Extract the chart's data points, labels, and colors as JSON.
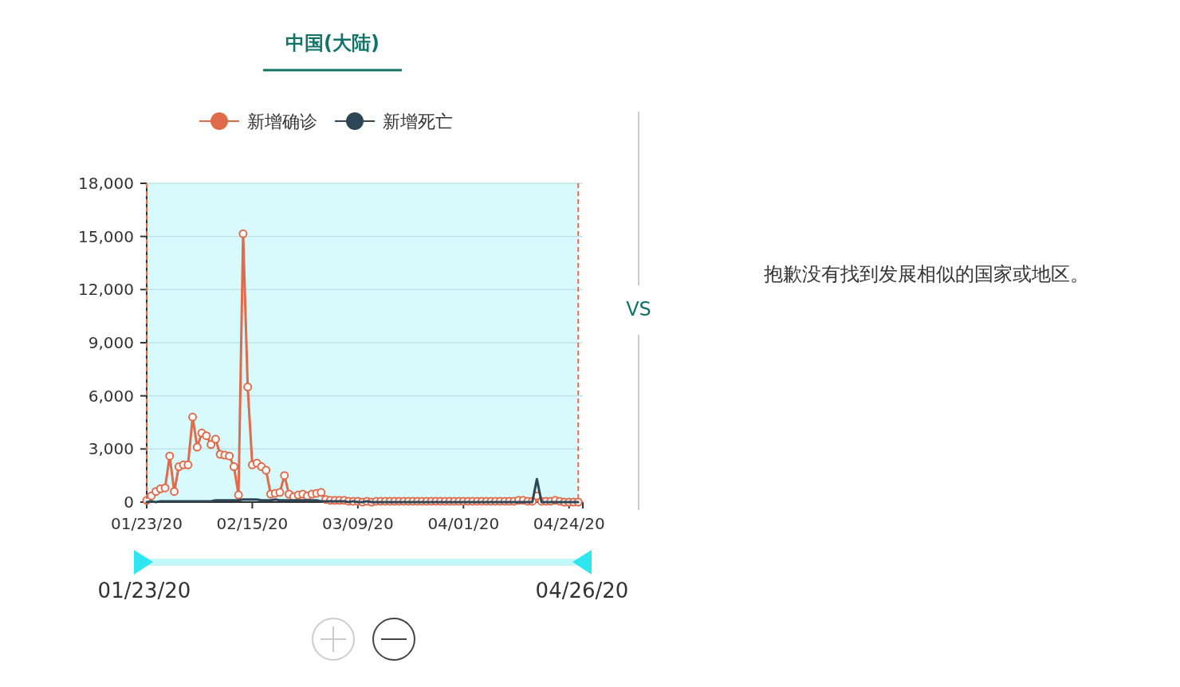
{
  "chart_data": {
    "type": "line",
    "title": "中国(大陆)",
    "subtitle": "VS",
    "x": [
      "2020-01-23",
      "2020-01-24",
      "2020-01-25",
      "2020-01-26",
      "2020-01-27",
      "2020-01-28",
      "2020-01-29",
      "2020-01-30",
      "2020-01-31",
      "2020-02-01",
      "2020-02-02",
      "2020-02-03",
      "2020-02-04",
      "2020-02-05",
      "2020-02-06",
      "2020-02-07",
      "2020-02-08",
      "2020-02-09",
      "2020-02-10",
      "2020-02-11",
      "2020-02-12",
      "2020-02-13",
      "2020-02-14",
      "2020-02-15",
      "2020-02-16",
      "2020-02-17",
      "2020-02-18",
      "2020-02-19",
      "2020-02-20",
      "2020-02-21",
      "2020-02-22",
      "2020-02-23",
      "2020-02-24",
      "2020-02-25",
      "2020-02-26",
      "2020-02-27",
      "2020-02-28",
      "2020-02-29",
      "2020-03-01",
      "2020-03-02",
      "2020-03-03",
      "2020-03-04",
      "2020-03-05",
      "2020-03-06",
      "2020-03-07",
      "2020-03-08",
      "2020-03-09",
      "2020-03-10",
      "2020-03-11",
      "2020-03-12",
      "2020-03-13",
      "2020-03-14",
      "2020-03-15",
      "2020-03-16",
      "2020-03-17",
      "2020-03-18",
      "2020-03-19",
      "2020-03-20",
      "2020-03-21",
      "2020-03-22",
      "2020-03-23",
      "2020-03-24",
      "2020-03-25",
      "2020-03-26",
      "2020-03-27",
      "2020-03-28",
      "2020-03-29",
      "2020-03-30",
      "2020-03-31",
      "2020-04-01",
      "2020-04-02",
      "2020-04-03",
      "2020-04-04",
      "2020-04-05",
      "2020-04-06",
      "2020-04-07",
      "2020-04-08",
      "2020-04-09",
      "2020-04-10",
      "2020-04-11",
      "2020-04-12",
      "2020-04-13",
      "2020-04-14",
      "2020-04-15",
      "2020-04-16",
      "2020-04-17",
      "2020-04-18",
      "2020-04-19",
      "2020-04-20",
      "2020-04-21",
      "2020-04-22",
      "2020-04-23",
      "2020-04-24",
      "2020-04-25",
      "2020-04-26"
    ],
    "series": [
      {
        "name": "新增确诊",
        "color": "#e06b4a",
        "marker": "circle",
        "values": [
          100,
          350,
          600,
          750,
          800,
          2600,
          600,
          2000,
          2100,
          2100,
          4800,
          3100,
          3900,
          3750,
          3250,
          3550,
          2700,
          2650,
          2600,
          2000,
          400,
          15150,
          6500,
          2100,
          2200,
          2000,
          1800,
          450,
          500,
          550,
          1500,
          450,
          300,
          400,
          450,
          350,
          450,
          500,
          550,
          150,
          100,
          100,
          100,
          100,
          50,
          50,
          50,
          0,
          50,
          0,
          50,
          50,
          50,
          50,
          50,
          50,
          50,
          50,
          50,
          50,
          50,
          50,
          50,
          50,
          50,
          50,
          50,
          50,
          50,
          50,
          50,
          50,
          50,
          50,
          50,
          50,
          50,
          50,
          50,
          50,
          50,
          100,
          100,
          50,
          50,
          350,
          50,
          50,
          50,
          100,
          50,
          0,
          0,
          0,
          0
        ]
      },
      {
        "name": "新增死亡",
        "color": "#2e4556",
        "marker": "none",
        "values": [
          0,
          50,
          0,
          50,
          50,
          50,
          50,
          50,
          50,
          50,
          50,
          50,
          50,
          50,
          50,
          100,
          100,
          100,
          100,
          100,
          100,
          150,
          150,
          150,
          150,
          100,
          100,
          100,
          150,
          100,
          100,
          100,
          100,
          100,
          100,
          100,
          100,
          100,
          50,
          50,
          50,
          50,
          50,
          50,
          0,
          50,
          0,
          0,
          50,
          0,
          0,
          0,
          0,
          0,
          0,
          0,
          0,
          0,
          0,
          0,
          0,
          0,
          0,
          0,
          0,
          0,
          0,
          0,
          0,
          0,
          0,
          0,
          0,
          0,
          0,
          0,
          0,
          0,
          0,
          0,
          0,
          0,
          0,
          0,
          0,
          1300,
          0,
          0,
          0,
          0,
          0,
          0,
          0,
          0,
          0
        ]
      }
    ],
    "xlim": [
      "2020-01-23",
      "2020-04-27"
    ],
    "xticks": [
      {
        "value": "2020-01-23",
        "label": "01/23/20"
      },
      {
        "value": "2020-02-15",
        "label": "02/15/20"
      },
      {
        "value": "2020-03-09",
        "label": "03/09/20"
      },
      {
        "value": "2020-04-01",
        "label": "04/01/20"
      },
      {
        "value": "2020-04-24",
        "label": "04/24/20"
      }
    ],
    "ylim": [
      0,
      18000
    ],
    "yticks": [
      0,
      {
        "value": 3000,
        "label": "3,000"
      },
      {
        "value": 6000,
        "label": "6,000"
      },
      {
        "value": 9000,
        "label": "9,000"
      },
      {
        "value": 12000,
        "label": "12,000"
      },
      {
        "value": 15000,
        "label": "15,000"
      },
      {
        "value": 18000,
        "label": "18,000"
      }
    ],
    "grid": "y",
    "legend": "top",
    "line_style": "solid",
    "bands": [
      {
        "axis": "x",
        "from": "2020-01-23",
        "to": "2020-04-26",
        "color": "#d8fafc"
      }
    ],
    "ref_lines": [
      {
        "axis": "x",
        "value": "2020-01-23",
        "color": "#e06b4a",
        "line_style": "dashed"
      },
      {
        "axis": "x",
        "value": "2020-04-26",
        "color": "#e06b4a",
        "line_style": "dashed"
      }
    ],
    "annotations": [
      "抱歉没有找到发展相似的国家或地区。",
      "01/23/20",
      "04/26/20"
    ]
  }
}
